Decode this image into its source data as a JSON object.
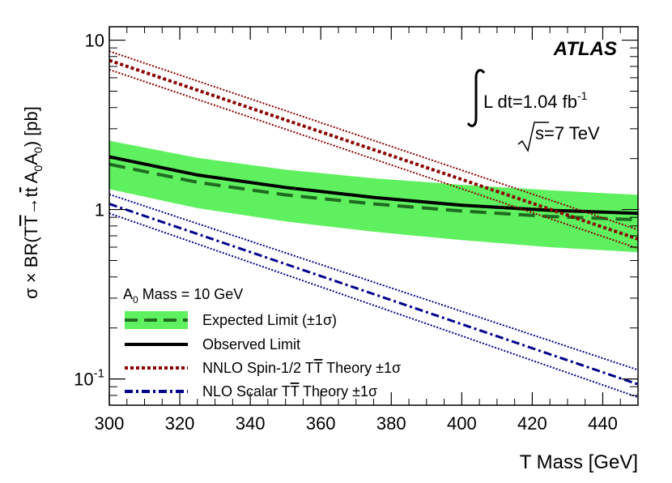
{
  "chart_data": {
    "type": "line",
    "x_scale": "linear",
    "y_scale": "log",
    "xlim": [
      300,
      450
    ],
    "ylim": [
      0.07,
      12
    ],
    "xlabel": "T Mass [GeV]",
    "ylabel_parts": [
      "σ × BR(T",
      "T",
      "→t",
      "t",
      " A",
      "0",
      "A",
      "0",
      ") [pb]"
    ],
    "x_ticks": [
      300,
      320,
      340,
      360,
      380,
      400,
      420,
      440
    ],
    "y_ticks": [
      {
        "value": 10,
        "label": "10"
      },
      {
        "value": 1,
        "label": "1"
      },
      {
        "value": 0.1,
        "base": "10",
        "exp": "-1"
      }
    ],
    "annotations": {
      "experiment": "ATLAS",
      "lumi_prefix": "L dt=1.04 fb",
      "lumi_exp": "-1",
      "energy_root": "s",
      "energy_value": "=7 TeV"
    },
    "legend": {
      "header_base": "A",
      "header_sub": "0",
      "header_rest": " Mass = 10 GeV",
      "entries": [
        {
          "label": "Expected Limit (±1σ)"
        },
        {
          "label": "Observed Limit"
        },
        {
          "label_pre": "NNLO Spin-1/2 T",
          "label_bar": "T",
          "label_post": " Theory ±1σ"
        },
        {
          "label_pre": "NLO Scalar T",
          "label_bar": "T",
          "label_post": " Theory ±1σ"
        }
      ]
    },
    "colors": {
      "band": "#5ef05e",
      "expected": "#1f6b1f",
      "observed": "#000000",
      "nnlo": "#8b0000",
      "nlo": "#00008b"
    },
    "series": [
      {
        "name": "Expected Limit",
        "x": [
          300,
          325,
          350,
          375,
          400,
          425,
          450
        ],
        "y": [
          1.85,
          1.45,
          1.22,
          1.08,
          0.98,
          0.91,
          0.87
        ]
      },
      {
        "name": "Expected +1σ",
        "x": [
          300,
          325,
          350,
          375,
          400,
          425,
          450
        ],
        "y": [
          2.55,
          2.02,
          1.72,
          1.53,
          1.4,
          1.3,
          1.22
        ]
      },
      {
        "name": "Expected -1σ",
        "x": [
          300,
          325,
          350,
          375,
          400,
          425,
          450
        ],
        "y": [
          1.32,
          1.02,
          0.85,
          0.74,
          0.66,
          0.6,
          0.56
        ]
      },
      {
        "name": "Observed Limit",
        "x": [
          300,
          325,
          350,
          375,
          400,
          425,
          450
        ],
        "y": [
          2.05,
          1.6,
          1.35,
          1.18,
          1.06,
          0.99,
          0.95
        ]
      },
      {
        "name": "NNLO Spin-1/2 Theory",
        "x": [
          300,
          450
        ],
        "y": [
          7.6,
          0.67
        ]
      },
      {
        "name": "NNLO Spin-1/2 Theory +1σ",
        "x": [
          300,
          450
        ],
        "y": [
          8.6,
          0.76
        ]
      },
      {
        "name": "NNLO Spin-1/2 Theory -1σ",
        "x": [
          300,
          450
        ],
        "y": [
          6.7,
          0.59
        ]
      },
      {
        "name": "NLO Scalar Theory",
        "x": [
          300,
          450
        ],
        "y": [
          1.08,
          0.093
        ]
      },
      {
        "name": "NLO Scalar Theory +1σ",
        "x": [
          300,
          450
        ],
        "y": [
          1.23,
          0.113
        ]
      },
      {
        "name": "NLO Scalar Theory -1σ",
        "x": [
          300,
          450
        ],
        "y": [
          0.95,
          0.078
        ]
      }
    ]
  }
}
